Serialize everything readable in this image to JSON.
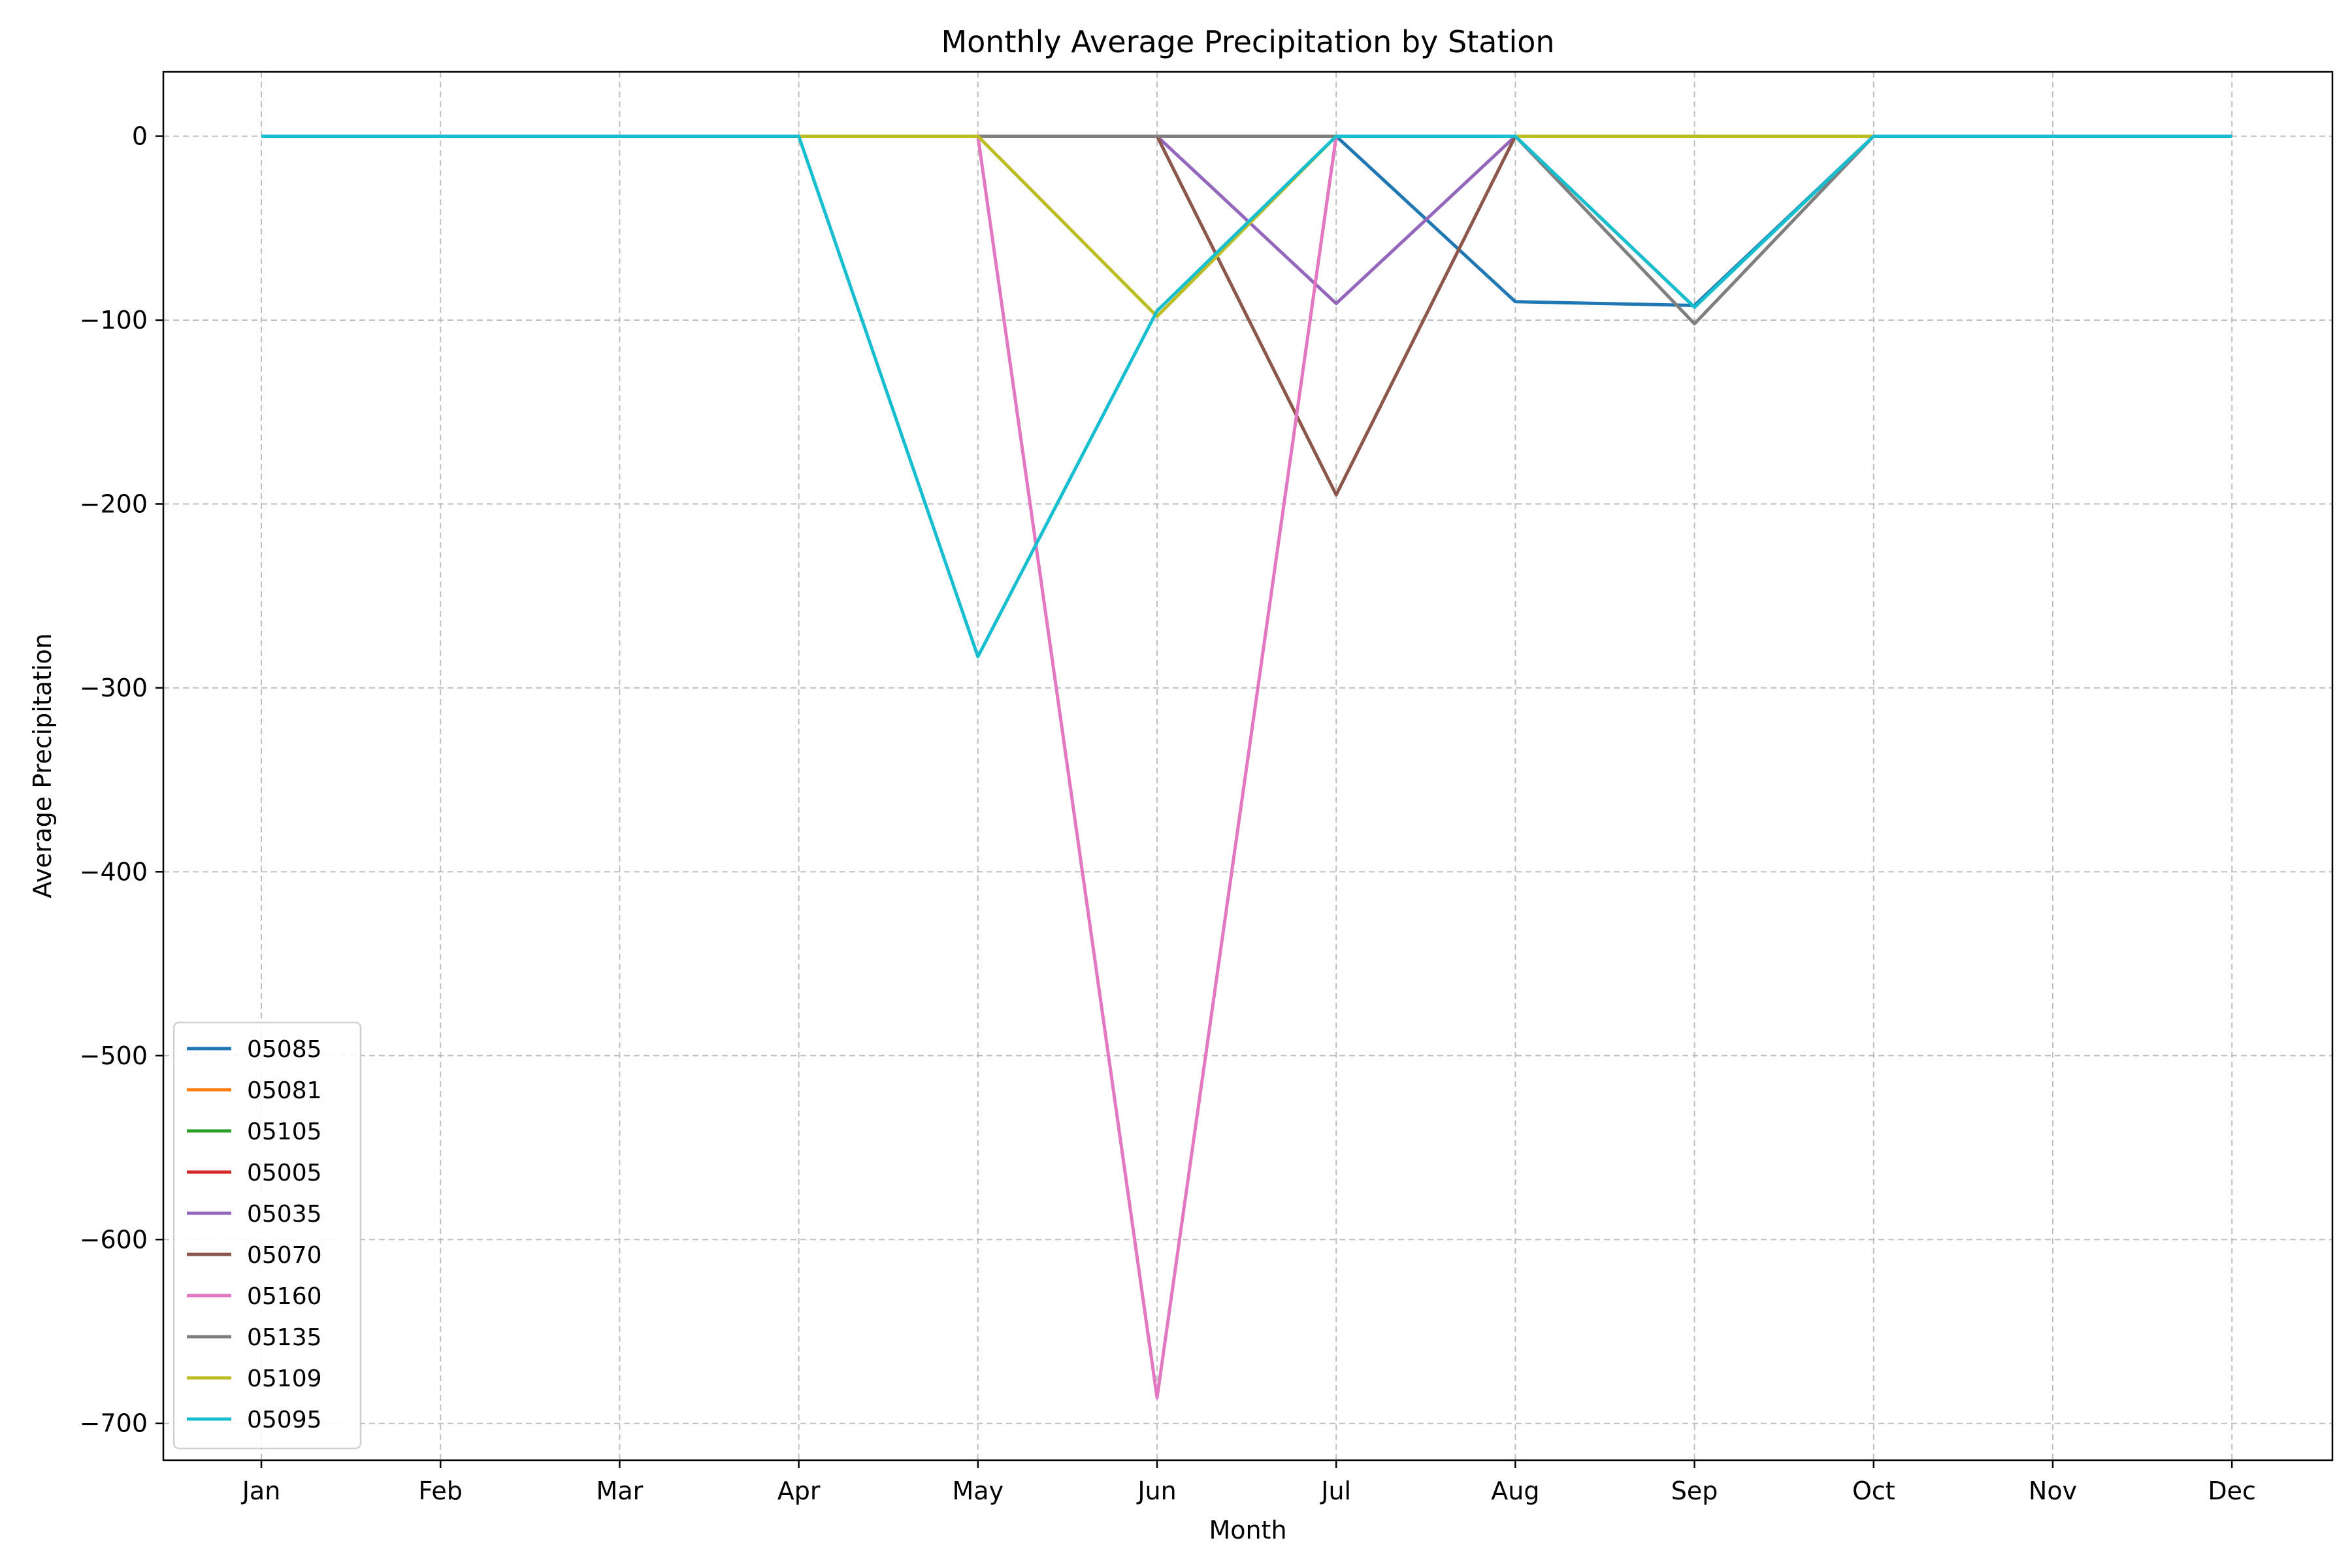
{
  "chart_data": {
    "type": "line",
    "title": "Monthly Average Precipitation by Station",
    "xlabel": "Month",
    "ylabel": "Average Precipitation",
    "categories": [
      "Jan",
      "Feb",
      "Mar",
      "Apr",
      "May",
      "Jun",
      "Jul",
      "Aug",
      "Sep",
      "Oct",
      "Nov",
      "Dec"
    ],
    "ylim": [
      -720,
      35
    ],
    "yticks": [
      0,
      -100,
      -200,
      -300,
      -400,
      -500,
      -600,
      -700
    ],
    "grid": true,
    "legend_position": "lower-left",
    "series": [
      {
        "name": "05085",
        "color": "#1f77b4",
        "values": [
          0,
          0,
          0,
          0,
          0,
          0,
          0,
          -90,
          -92,
          0,
          0,
          0
        ]
      },
      {
        "name": "05081",
        "color": "#ff7f0e",
        "values": [
          0,
          0,
          0,
          0,
          0,
          0,
          0,
          0,
          0,
          0,
          0,
          0
        ]
      },
      {
        "name": "05105",
        "color": "#2ca02c",
        "values": [
          0,
          0,
          0,
          0,
          0,
          0,
          0,
          0,
          -93,
          0,
          0,
          0
        ]
      },
      {
        "name": "05005",
        "color": "#d62728",
        "values": [
          0,
          0,
          0,
          0,
          0,
          0,
          0,
          0,
          0,
          0,
          0,
          0
        ]
      },
      {
        "name": "05035",
        "color": "#9467bd",
        "values": [
          0,
          0,
          0,
          0,
          0,
          0,
          -91,
          0,
          0,
          0,
          0,
          0
        ]
      },
      {
        "name": "05070",
        "color": "#8c564b",
        "values": [
          0,
          0,
          0,
          0,
          0,
          0,
          -195,
          0,
          0,
          0,
          0,
          0
        ]
      },
      {
        "name": "05160",
        "color": "#e377c2",
        "values": [
          0,
          0,
          0,
          0,
          0,
          -686,
          0,
          0,
          0,
          0,
          0,
          0
        ]
      },
      {
        "name": "05135",
        "color": "#7f7f7f",
        "values": [
          0,
          0,
          0,
          0,
          0,
          0,
          0,
          0,
          -102,
          0,
          0,
          0
        ]
      },
      {
        "name": "05109",
        "color": "#bcbd22",
        "values": [
          0,
          0,
          0,
          0,
          0,
          -98,
          0,
          0,
          0,
          0,
          0,
          0
        ]
      },
      {
        "name": "05095",
        "color": "#17becf",
        "values": [
          0,
          0,
          0,
          0,
          -283,
          -95,
          0,
          0,
          -93,
          0,
          0,
          0
        ]
      }
    ]
  }
}
